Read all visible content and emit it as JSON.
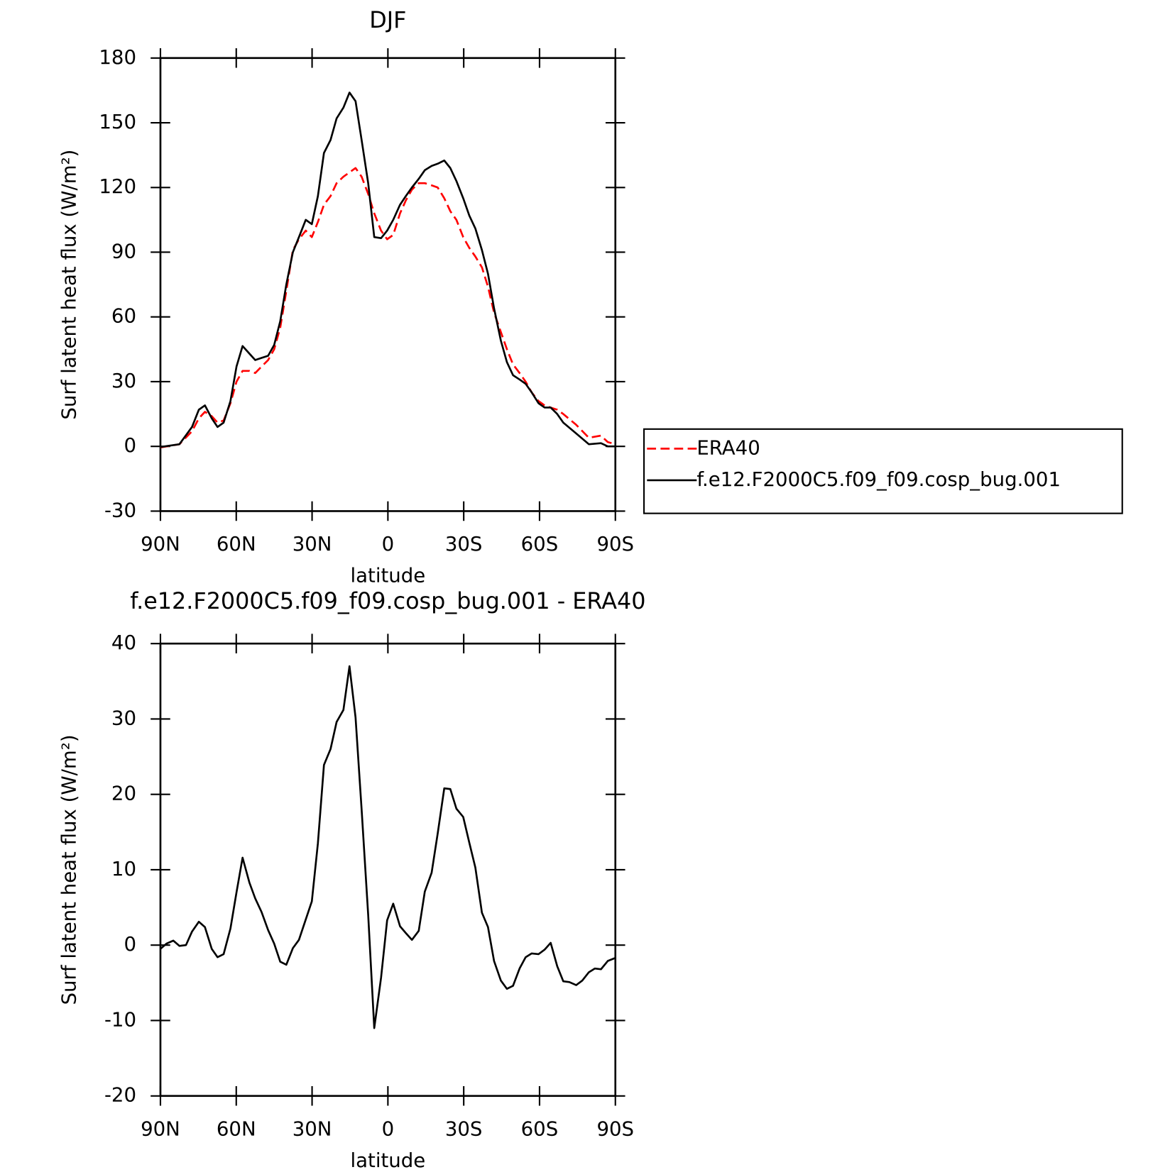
{
  "chart_data": [
    {
      "type": "line",
      "title": "DJF",
      "xlabel": "latitude",
      "ylabel": "Surf latent heat flux (W/m²)",
      "x": [
        90,
        82.5,
        77.5,
        74.8,
        72.4,
        69.7,
        67.4,
        65,
        62.3,
        59.9,
        57.5,
        54.8,
        52.5,
        50,
        47.4,
        45,
        42.6,
        40.2,
        37.6,
        35.2,
        32.5,
        30.1,
        27.7,
        25.3,
        22.7,
        20.3,
        17.6,
        15.2,
        12.8,
        10.4,
        7.8,
        5.4,
        2.7,
        0.3,
        -2.1,
        -4.8,
        -7.1,
        -9.5,
        -12.2,
        -14.6,
        -17.3,
        -19.7,
        -22.3,
        -24.7,
        -27.1,
        -29.8,
        -32.2,
        -34.6,
        -37.2,
        -39.6,
        -42,
        -44.7,
        -47.1,
        -49.5,
        -52.1,
        -54.5,
        -56.9,
        -59.6,
        -62,
        -64.4,
        -67,
        -69.4,
        -74.5,
        -79.5,
        -84.3,
        -87,
        -90
      ],
      "series": [
        {
          "name": "ERA40",
          "color": "#ff0000",
          "linestyle": "dashed",
          "values": [
            -0.5,
            1,
            7,
            13,
            16,
            14,
            11,
            12,
            20,
            30,
            35,
            35,
            34,
            37,
            40,
            45,
            55,
            72,
            91,
            96,
            100,
            97,
            104,
            112,
            116,
            122,
            125,
            127,
            129,
            125,
            117,
            108,
            100,
            96,
            98,
            108,
            114,
            119,
            122,
            122,
            121,
            120,
            115,
            109,
            105,
            97,
            92,
            88,
            83,
            74,
            62,
            53,
            45,
            38,
            34,
            30,
            25,
            21,
            19,
            18,
            17,
            15,
            10,
            4,
            5,
            2,
            1
          ]
        },
        {
          "name": "f.e12.F2000C5.f09_f09.cosp_bug.001",
          "color": "#000000",
          "linestyle": "solid",
          "values": [
            -0.3,
            1,
            9,
            17,
            19,
            13,
            9,
            11,
            21,
            37,
            46.5,
            43,
            40,
            41,
            42,
            47,
            58,
            75,
            90,
            97,
            105,
            103,
            116,
            136,
            142,
            152,
            157,
            164,
            160,
            142,
            122,
            97,
            96.5,
            100,
            105,
            112,
            116,
            120,
            124,
            128,
            130,
            131,
            132.5,
            129,
            123,
            115,
            107,
            101,
            91,
            80,
            64,
            49,
            39,
            33,
            31,
            29,
            25,
            20,
            18,
            18,
            15,
            11,
            6,
            1,
            1.5,
            0,
            0
          ]
        }
      ],
      "xlim": [
        90,
        -90
      ],
      "xticks": [
        {
          "value": 90,
          "label": "90N"
        },
        {
          "value": 60,
          "label": "60N"
        },
        {
          "value": 30,
          "label": "30N"
        },
        0,
        {
          "value": -30,
          "label": "30S"
        },
        {
          "value": -60,
          "label": "60S"
        },
        {
          "value": -90,
          "label": "90S"
        }
      ],
      "ylim": [
        -30,
        180
      ],
      "yticks": [
        -30,
        0,
        30,
        60,
        90,
        120,
        150,
        180
      ],
      "legend": "right"
    },
    {
      "type": "line",
      "title": "f.e12.F2000C5.f09_f09.cosp_bug.001 - ERA40",
      "xlabel": "latitude",
      "ylabel": "Surf latent heat flux (W/m²)",
      "x": [
        90,
        87.6,
        84.9,
        82.5,
        79.9,
        77.5,
        74.8,
        72.4,
        69.7,
        67.4,
        65,
        62.3,
        59.9,
        57.5,
        54.8,
        52.5,
        50,
        47.4,
        45,
        42.6,
        40.2,
        37.6,
        35.2,
        32.5,
        30.1,
        27.7,
        25.3,
        22.7,
        20.3,
        17.6,
        15.2,
        12.8,
        10.4,
        7.8,
        5.4,
        2.7,
        0.3,
        -2.1,
        -4.8,
        -7.1,
        -9.5,
        -12.2,
        -14.6,
        -17.3,
        -19.7,
        -22.3,
        -24.7,
        -27.1,
        -29.8,
        -32.2,
        -34.6,
        -37.2,
        -39.6,
        -42,
        -44.7,
        -47.1,
        -49.5,
        -52.1,
        -54.5,
        -56.9,
        -59.6,
        -62,
        -64.4,
        -67,
        -69.4,
        -71.8,
        -74.5,
        -76.9,
        -79.5,
        -81.9,
        -84.3,
        -87,
        -90
      ],
      "series": [
        {
          "name": "f.e12.F2000C5.f09_f09.cosp_bug.001 - ERA40",
          "color": "#000000",
          "linestyle": "solid",
          "values": [
            -0.5,
            0.2,
            0.6,
            -0.1,
            0,
            1.8,
            3.1,
            2.4,
            -0.5,
            -1.6,
            -1.2,
            2.2,
            7,
            11.6,
            8.3,
            6.2,
            4.4,
            2,
            0.2,
            -2.2,
            -2.6,
            -0.4,
            0.7,
            3.4,
            5.8,
            13.5,
            23.9,
            26,
            29.6,
            31.2,
            37,
            30.2,
            18,
            4,
            -11,
            -4.3,
            3.3,
            5.5,
            2.5,
            1.6,
            0.7,
            1.9,
            7.1,
            9.6,
            14.8,
            20.8,
            20.7,
            18.1,
            17,
            13.6,
            10.3,
            4.3,
            2.4,
            -2.1,
            -4.7,
            -5.8,
            -5.4,
            -3.1,
            -1.6,
            -1.1,
            -1.2,
            -0.6,
            0.3,
            -2.8,
            -4.8,
            -4.9,
            -5.3,
            -4.7,
            -3.6,
            -3.1,
            -3.2,
            -2.1,
            -1.7
          ]
        }
      ],
      "xlim": [
        90,
        -90
      ],
      "xticks": [
        {
          "value": 90,
          "label": "90N"
        },
        {
          "value": 60,
          "label": "60N"
        },
        {
          "value": 30,
          "label": "30N"
        },
        0,
        {
          "value": -30,
          "label": "30S"
        },
        {
          "value": -60,
          "label": "60S"
        },
        {
          "value": -90,
          "label": "90S"
        }
      ],
      "ylim": [
        -20,
        40
      ],
      "yticks": [
        -20,
        -10,
        0,
        10,
        20,
        30,
        40
      ]
    }
  ]
}
